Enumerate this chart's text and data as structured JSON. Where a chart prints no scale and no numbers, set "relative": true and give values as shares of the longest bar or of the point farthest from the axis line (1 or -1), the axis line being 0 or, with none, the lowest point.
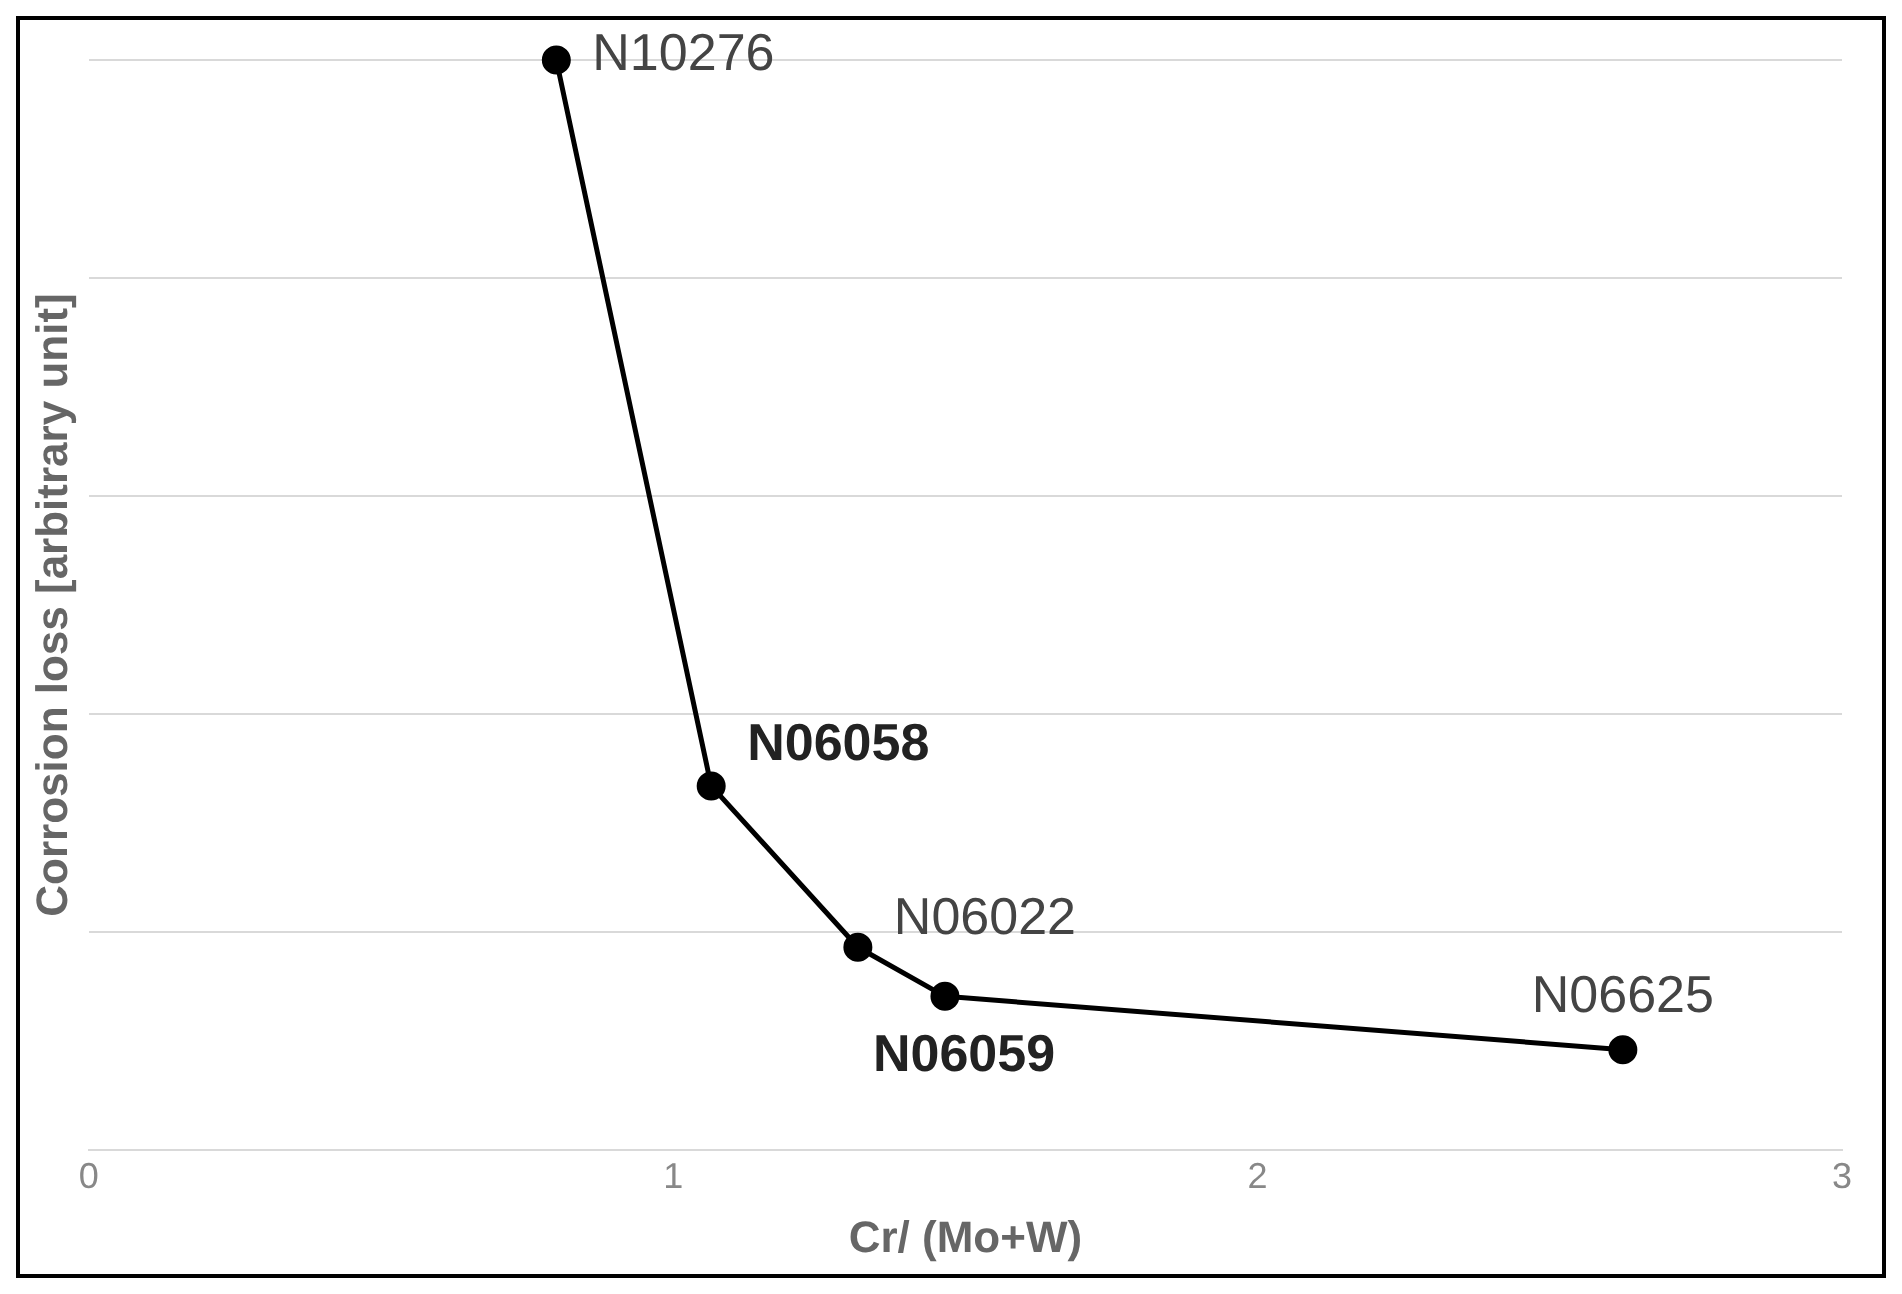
{
  "chart_data": {
    "type": "line",
    "relative": true,
    "xlabel": "Cr/ (Mo+W)",
    "ylabel": "Corrosion loss [arbitrary unit]",
    "xlim": [
      0,
      3
    ],
    "xticks": [
      0,
      1,
      2,
      3
    ],
    "grid": "y",
    "legend": false,
    "marker": "circle",
    "line_style": "solid",
    "series": [
      {
        "color": "#000000",
        "x": [
          0.8,
          1.065,
          1.316,
          1.465,
          2.625
        ],
        "values": [
          1,
          0.334,
          0.186,
          0.141,
          0.092
        ]
      }
    ],
    "annotations": [
      {
        "text": "N10276",
        "x": 0.8,
        "y": 1
      },
      {
        "text": "N06058",
        "x": 1.065,
        "y": 0.334
      },
      {
        "text": "N06022",
        "x": 1.316,
        "y": 0.186
      },
      {
        "text": "N06059",
        "x": 1.465,
        "y": 0.141
      },
      {
        "text": "N06625",
        "x": 2.625,
        "y": 0.092
      }
    ]
  }
}
